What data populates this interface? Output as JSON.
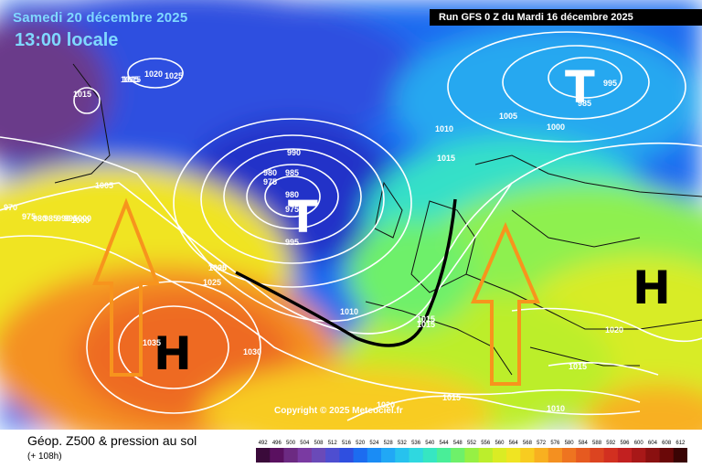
{
  "header": {
    "date": "Samedi 20 décembre 2025",
    "time": "13:00 locale",
    "run": "Run GFS 0 Z du Mardi 16 décembre 2025"
  },
  "copyright": "Copyright © 2025 Meteociel.fr",
  "footer": {
    "title": "Géop. Z500 & pression au sol",
    "subtitle": "(+ 108h)"
  },
  "pressure_systems": [
    {
      "type": "low",
      "symbol": "T",
      "where": "north-atlantic"
    },
    {
      "type": "low",
      "symbol": "T",
      "where": "scandinavia"
    },
    {
      "type": "high",
      "symbol": "H",
      "where": "azores"
    },
    {
      "type": "high",
      "symbol": "H",
      "where": "central-europe"
    }
  ],
  "isobar_labels": [
    "1015",
    "1020",
    "1025",
    "1015",
    "1015",
    "1005",
    "1000",
    "995",
    "990",
    "985",
    "980",
    "975",
    "980",
    "975",
    "970",
    "975",
    "980",
    "985",
    "990",
    "995",
    "1000",
    "1005",
    "1010",
    "1015",
    "1020",
    "1025",
    "1030",
    "1035",
    "1020",
    "1015",
    "1015",
    "1010",
    "1020",
    "1015",
    "1010",
    "1015",
    "1000",
    "1005",
    "995",
    "985",
    "985",
    "995"
  ],
  "scale_values": [
    "492",
    "496",
    "500",
    "504",
    "508",
    "512",
    "516",
    "520",
    "524",
    "528",
    "532",
    "536",
    "540",
    "544",
    "548",
    "552",
    "556",
    "560",
    "564",
    "568",
    "572",
    "576",
    "580",
    "584",
    "588",
    "592",
    "596",
    "600",
    "604",
    "608",
    "612"
  ],
  "scale_colors": [
    "#3a0a3a",
    "#5a1060",
    "#6c2a82",
    "#7a3aa2",
    "#6a4ab8",
    "#4e4ed0",
    "#2f4fe0",
    "#1c6cf0",
    "#1a8cf5",
    "#21a8f5",
    "#27c2ee",
    "#2fd8e0",
    "#36e6c2",
    "#49ee98",
    "#6ef06a",
    "#96f044",
    "#bcee2c",
    "#daec24",
    "#f0e422",
    "#f8cc20",
    "#f8b020",
    "#f49020",
    "#ee7420",
    "#e65a20",
    "#dc4420",
    "#d23020",
    "#c22020",
    "#a81818",
    "#8a1010",
    "#6a0808",
    "#3a0404"
  ]
}
